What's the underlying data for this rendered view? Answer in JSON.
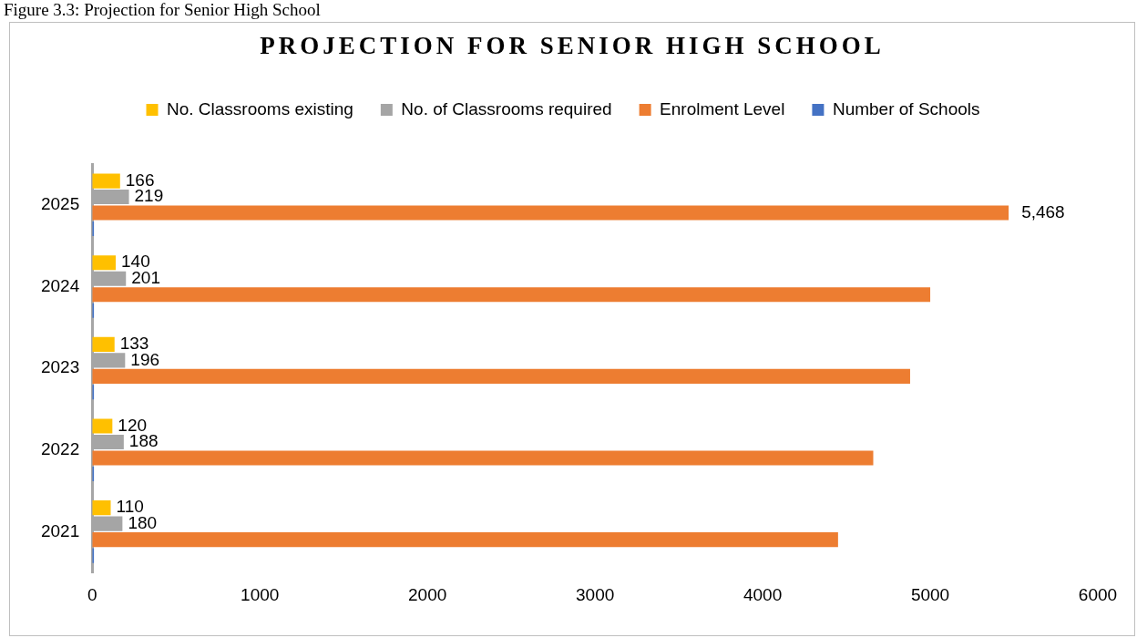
{
  "chart_data": {
    "type": "bar",
    "orientation": "horizontal",
    "title": "PROJECTION FOR SENIOR HIGH SCHOOL",
    "annotations": [
      "Figure 3.3: Projection for Senior High School"
    ],
    "categories": [
      "2025",
      "2024",
      "2023",
      "2022",
      "2021"
    ],
    "series": [
      {
        "name": "No. Classrooms existing",
        "color": "#ffc000",
        "values": [
          166,
          140,
          133,
          120,
          110
        ],
        "value_labels": [
          "166",
          "140",
          "133",
          "120",
          "110"
        ]
      },
      {
        "name": "No. of Classrooms required",
        "color": "#a5a5a5",
        "values": [
          219,
          201,
          196,
          188,
          180
        ],
        "value_labels": [
          "219",
          "201",
          "196",
          "188",
          "180"
        ]
      },
      {
        "name": "Enrolment Level",
        "color": "#ed7d31",
        "values": [
          5468,
          5000,
          4880,
          4660,
          4450
        ],
        "value_labels": [
          "5,468",
          null,
          null,
          null,
          null
        ]
      },
      {
        "name": "Number of Schools",
        "color": "#4472c4",
        "values": [
          10,
          10,
          10,
          10,
          10
        ]
      }
    ],
    "xlim": [
      0,
      6000
    ],
    "xticks": [
      0,
      1000,
      2000,
      3000,
      4000,
      5000,
      6000
    ],
    "legend": "top"
  }
}
